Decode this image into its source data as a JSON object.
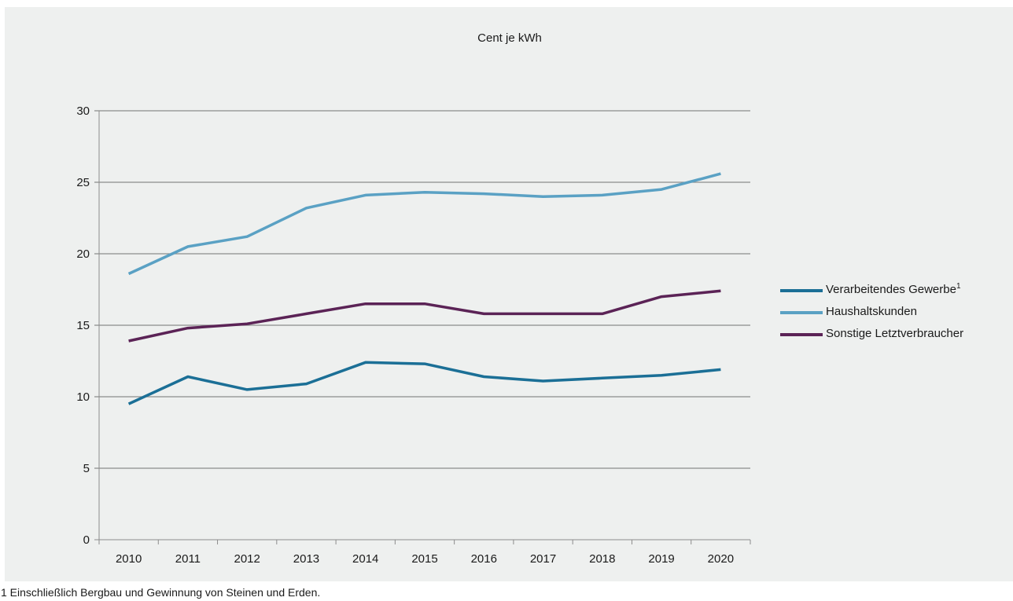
{
  "chart_data": {
    "type": "line",
    "title": "Cent je kWh",
    "x": [
      "2010",
      "2011",
      "2012",
      "2013",
      "2014",
      "2015",
      "2016",
      "2017",
      "2018",
      "2019",
      "2020"
    ],
    "ylim": [
      0,
      30
    ],
    "yticks": [
      0,
      5,
      10,
      15,
      20,
      25,
      30
    ],
    "grid": true,
    "legend_position": "right",
    "series": [
      {
        "name": "Verarbeitendes Gewerbe",
        "superscript": "1",
        "color": "#1b6f96",
        "values": [
          9.5,
          11.4,
          10.5,
          10.9,
          12.4,
          12.3,
          11.4,
          11.1,
          11.3,
          11.5,
          11.9
        ]
      },
      {
        "name": "Haushaltskunden",
        "superscript": "",
        "color": "#5aa1c4",
        "values": [
          18.6,
          20.5,
          21.2,
          23.2,
          24.1,
          24.3,
          24.2,
          24.0,
          24.1,
          24.5,
          25.6
        ]
      },
      {
        "name": "Sonstige Letztverbraucher",
        "superscript": "",
        "color": "#5b2356",
        "values": [
          13.9,
          14.8,
          15.1,
          15.8,
          16.5,
          16.5,
          15.8,
          15.8,
          15.8,
          17.0,
          17.4
        ]
      }
    ]
  },
  "footnote": "1 Einschließlich Bergbau und Gewinnung von Steinen und Erden."
}
